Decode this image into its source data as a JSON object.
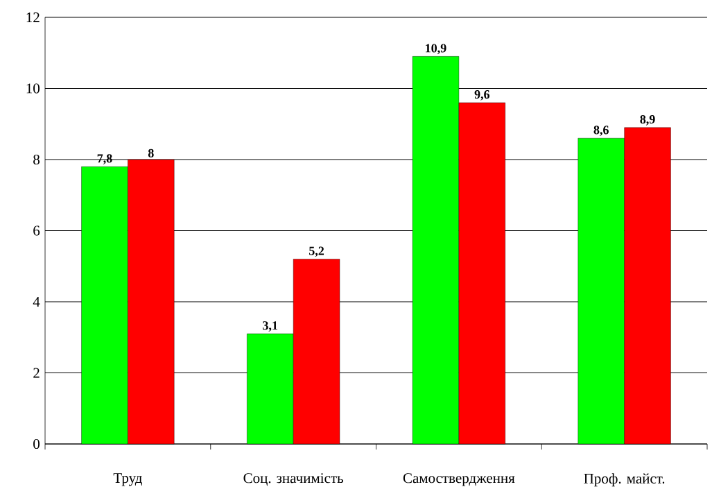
{
  "chart_data": {
    "type": "bar",
    "categories": [
      "Труд",
      "Соц. значимість",
      "Самоствердження",
      "Проф. майст."
    ],
    "series": [
      {
        "color": "#00ff00",
        "values": [
          7.8,
          3.1,
          10.9,
          8.6
        ],
        "value_labels": [
          "7,8",
          "3,1",
          "10,9",
          "8,6"
        ]
      },
      {
        "color": "#ff0000",
        "values": [
          8,
          5.2,
          9.6,
          8.9
        ],
        "value_labels": [
          "8",
          "5,2",
          "9,6",
          "8,9"
        ]
      }
    ],
    "ylim": [
      0,
      12
    ],
    "yticks": [
      0,
      2,
      4,
      6,
      8,
      10,
      12
    ],
    "grid": "y"
  }
}
